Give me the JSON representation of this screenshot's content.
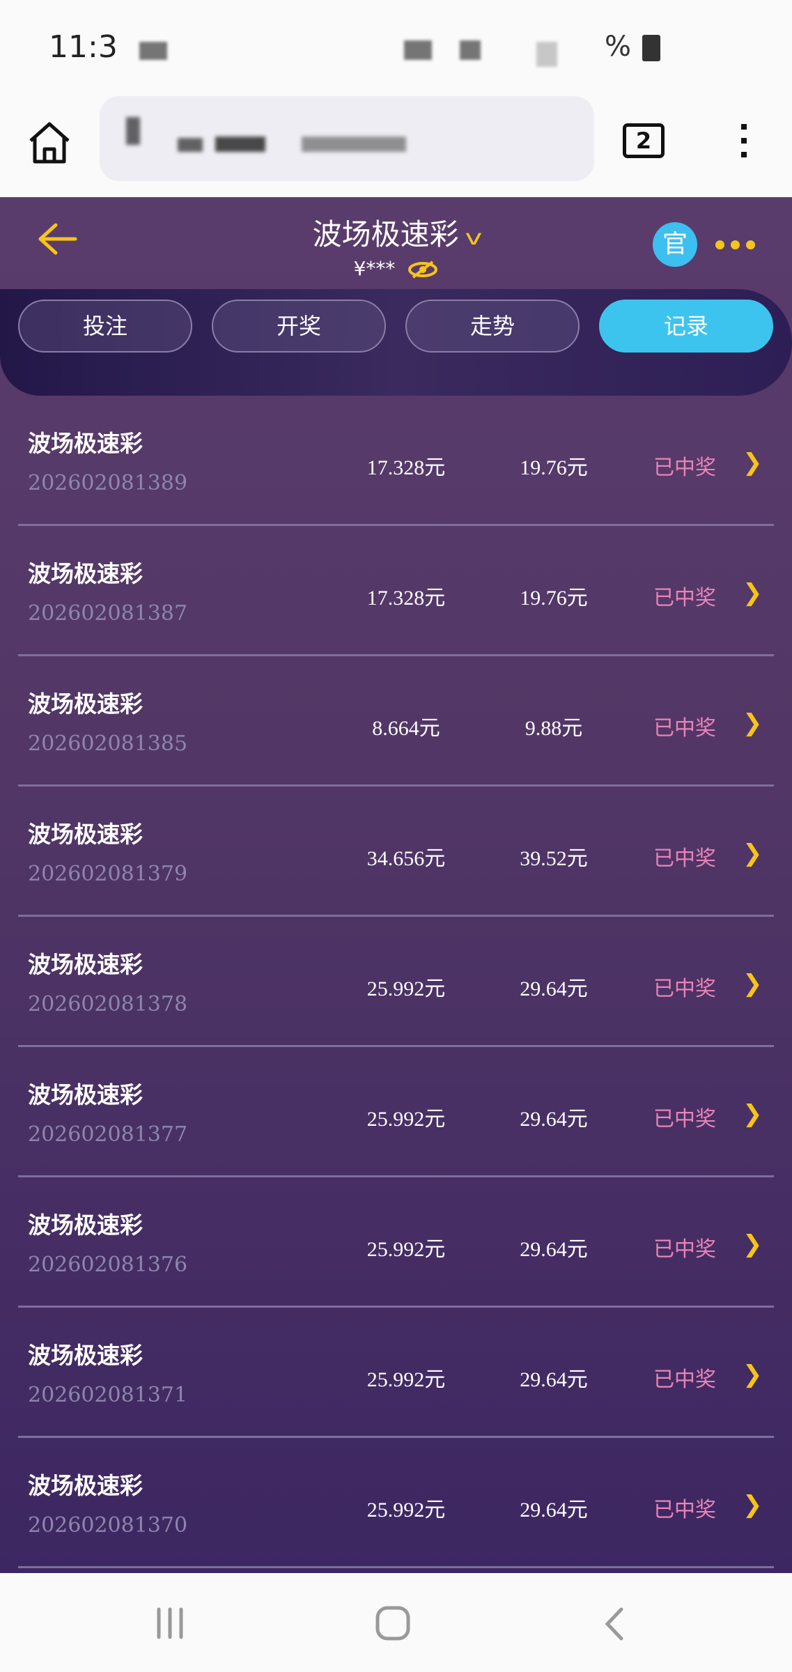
{
  "status_bar": {
    "time": "11:3",
    "battery": "%"
  },
  "browser": {
    "tab_count": "2"
  },
  "header": {
    "title": "波场极速彩",
    "balance": "¥***",
    "official_badge": "官"
  },
  "tabs": [
    {
      "label": "投注",
      "active": false
    },
    {
      "label": "开奖",
      "active": false
    },
    {
      "label": "走势",
      "active": false
    },
    {
      "label": "记录",
      "active": true
    }
  ],
  "records": [
    {
      "name": "波场极速彩",
      "id": "202602081389",
      "bet": "17.328元",
      "win": "19.76元",
      "status": "已中奖"
    },
    {
      "name": "波场极速彩",
      "id": "202602081387",
      "bet": "17.328元",
      "win": "19.76元",
      "status": "已中奖"
    },
    {
      "name": "波场极速彩",
      "id": "202602081385",
      "bet": "8.664元",
      "win": "9.88元",
      "status": "已中奖"
    },
    {
      "name": "波场极速彩",
      "id": "202602081379",
      "bet": "34.656元",
      "win": "39.52元",
      "status": "已中奖"
    },
    {
      "name": "波场极速彩",
      "id": "202602081378",
      "bet": "25.992元",
      "win": "29.64元",
      "status": "已中奖"
    },
    {
      "name": "波场极速彩",
      "id": "202602081377",
      "bet": "25.992元",
      "win": "29.64元",
      "status": "已中奖"
    },
    {
      "name": "波场极速彩",
      "id": "202602081376",
      "bet": "25.992元",
      "win": "29.64元",
      "status": "已中奖"
    },
    {
      "name": "波场极速彩",
      "id": "202602081371",
      "bet": "25.992元",
      "win": "29.64元",
      "status": "已中奖"
    },
    {
      "name": "波场极速彩",
      "id": "202602081370",
      "bet": "25.992元",
      "win": "29.64元",
      "status": "已中奖"
    }
  ],
  "colors": {
    "accent": "#f5c518",
    "active_tab": "#3cc4ee",
    "status_won": "#e884b8"
  }
}
